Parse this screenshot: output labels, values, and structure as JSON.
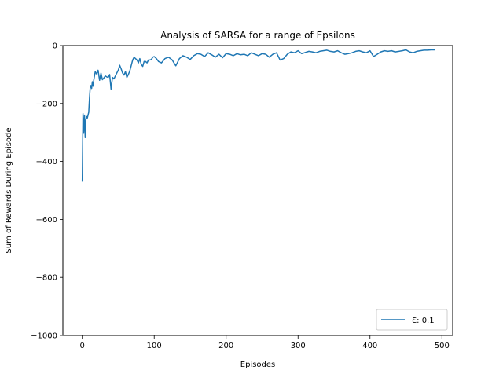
{
  "chart_data": {
    "type": "line",
    "title": "Analysis of SARSA for a range of Epsilons",
    "xlabel": "Episodes",
    "ylabel": "Sum of Rewards During Episode",
    "xlim": [
      -27,
      515
    ],
    "ylim": [
      -1000,
      0
    ],
    "xticks": [
      0,
      100,
      200,
      300,
      400,
      500
    ],
    "yticks": [
      0,
      -200,
      -400,
      -600,
      -800,
      -1000
    ],
    "xtick_labels": [
      "0",
      "100",
      "200",
      "300",
      "400",
      "500"
    ],
    "ytick_labels": [
      "0",
      "−200",
      "−400",
      "−600",
      "−800",
      "−1000"
    ],
    "grid": false,
    "legend_position": "lower-right",
    "series": [
      {
        "name": "Ɛ: 0.1",
        "color": "#1f77b4",
        "x": [
          0,
          1,
          2,
          3,
          4,
          5,
          6,
          7,
          8,
          9,
          10,
          11,
          12,
          13,
          14,
          15,
          16,
          18,
          20,
          22,
          24,
          26,
          28,
          30,
          32,
          34,
          36,
          38,
          40,
          42,
          44,
          46,
          48,
          50,
          52,
          54,
          56,
          58,
          60,
          62,
          64,
          66,
          68,
          70,
          72,
          74,
          76,
          78,
          80,
          82,
          84,
          86,
          88,
          90,
          92,
          94,
          96,
          98,
          100,
          103,
          106,
          110,
          115,
          120,
          125,
          130,
          135,
          140,
          145,
          150,
          155,
          160,
          165,
          170,
          175,
          180,
          185,
          190,
          195,
          200,
          205,
          210,
          215,
          220,
          225,
          230,
          235,
          240,
          245,
          250,
          255,
          260,
          265,
          270,
          275,
          280,
          285,
          290,
          295,
          300,
          305,
          310,
          315,
          320,
          325,
          330,
          335,
          340,
          345,
          350,
          355,
          360,
          365,
          370,
          375,
          380,
          385,
          390,
          395,
          400,
          405,
          410,
          415,
          420,
          425,
          430,
          435,
          440,
          445,
          450,
          455,
          460,
          465,
          470,
          475,
          480,
          485,
          490
        ],
        "y": [
          -470,
          -235,
          -300,
          -240,
          -318,
          -255,
          -245,
          -250,
          -240,
          -230,
          -180,
          -145,
          -138,
          -148,
          -125,
          -140,
          -118,
          -90,
          -98,
          -85,
          -120,
          -95,
          -118,
          -112,
          -105,
          -108,
          -110,
          -100,
          -150,
          -110,
          -115,
          -105,
          -95,
          -85,
          -68,
          -80,
          -95,
          -102,
          -90,
          -110,
          -100,
          -88,
          -70,
          -50,
          -40,
          -45,
          -50,
          -60,
          -45,
          -65,
          -72,
          -55,
          -55,
          -60,
          -50,
          -50,
          -48,
          -40,
          -38,
          -45,
          -55,
          -60,
          -45,
          -40,
          -50,
          -70,
          -45,
          -35,
          -40,
          -48,
          -35,
          -28,
          -30,
          -38,
          -25,
          -32,
          -40,
          -30,
          -42,
          -28,
          -30,
          -35,
          -28,
          -32,
          -30,
          -35,
          -25,
          -30,
          -35,
          -28,
          -30,
          -40,
          -30,
          -25,
          -50,
          -45,
          -30,
          -22,
          -25,
          -18,
          -28,
          -24,
          -20,
          -22,
          -25,
          -20,
          -18,
          -16,
          -20,
          -22,
          -18,
          -25,
          -30,
          -28,
          -25,
          -20,
          -18,
          -22,
          -25,
          -18,
          -38,
          -30,
          -22,
          -18,
          -20,
          -18,
          -22,
          -20,
          -18,
          -15,
          -22,
          -25,
          -20,
          -18,
          -16,
          -16,
          -15,
          -15
        ]
      }
    ]
  }
}
